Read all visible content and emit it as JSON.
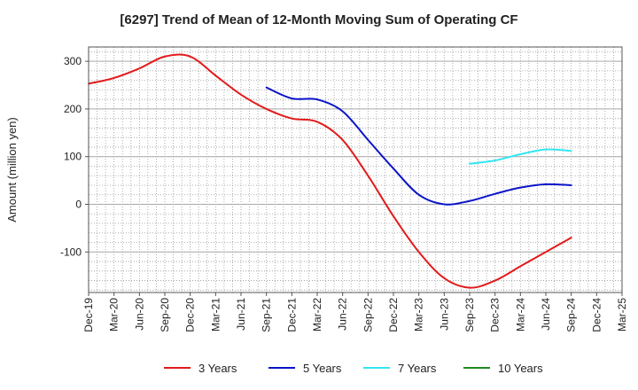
{
  "chart_data": {
    "type": "line",
    "title": "[6297]  Trend of Mean of 12-Month Moving Sum of Operating CF",
    "xlabel": "",
    "ylabel": "Amount (million yen)",
    "ylim": [
      -185,
      330
    ],
    "yticks": [
      -100,
      0,
      100,
      200,
      300
    ],
    "grid": true,
    "legend_position": "bottom",
    "categories": [
      "Dec-19",
      "Mar-20",
      "Jun-20",
      "Sep-20",
      "Dec-20",
      "Mar-21",
      "Jun-21",
      "Sep-21",
      "Dec-21",
      "Mar-22",
      "Jun-22",
      "Sep-22",
      "Dec-22",
      "Mar-23",
      "Jun-23",
      "Sep-23",
      "Dec-23",
      "Mar-24",
      "Jun-24",
      "Sep-24",
      "Dec-24",
      "Mar-25"
    ],
    "series": [
      {
        "name": "3 Years",
        "color": "#e31a1c",
        "values": [
          253,
          265,
          285,
          310,
          310,
          270,
          230,
          200,
          180,
          173,
          135,
          60,
          -25,
          -100,
          -155,
          -175,
          -160,
          -130,
          -100,
          -70,
          null,
          null
        ]
      },
      {
        "name": "5 Years",
        "color": "#0a14c8",
        "values": [
          null,
          null,
          null,
          null,
          null,
          null,
          null,
          245,
          222,
          220,
          195,
          135,
          75,
          20,
          0,
          7,
          22,
          35,
          42,
          40,
          null,
          null
        ]
      },
      {
        "name": "7 Years",
        "color": "#33e6f0",
        "values": [
          null,
          null,
          null,
          null,
          null,
          null,
          null,
          null,
          null,
          null,
          null,
          null,
          null,
          null,
          null,
          85,
          92,
          105,
          115,
          112,
          null,
          null
        ]
      },
      {
        "name": "10 Years",
        "color": "#1f8a1f",
        "values": [
          null,
          null,
          null,
          null,
          null,
          null,
          null,
          null,
          null,
          null,
          null,
          null,
          null,
          null,
          null,
          null,
          null,
          null,
          null,
          null,
          null,
          null
        ]
      }
    ]
  }
}
